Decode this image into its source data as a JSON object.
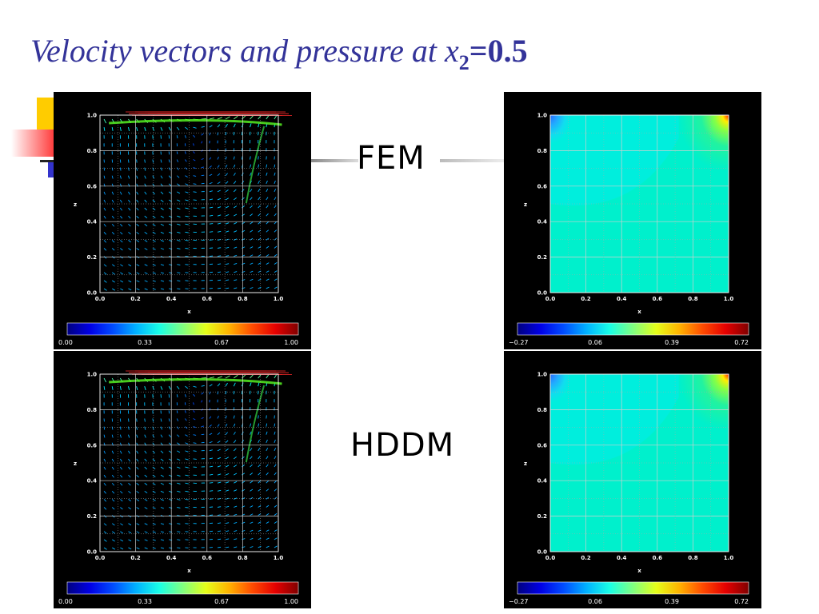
{
  "slide": {
    "title_prefix": "Velocity vectors and pressure at",
    "title_var": "x",
    "title_sub": "2",
    "title_eq": "=0.5",
    "label_top": "FEM",
    "label_bottom": "HDDM"
  },
  "axes": {
    "x_label": "x",
    "z_label": "z",
    "x_ticks": [
      "0.0",
      "0.2",
      "0.4",
      "0.6",
      "0.8",
      "1.0"
    ],
    "z_ticks": [
      "0.0",
      "0.2",
      "0.4",
      "0.6",
      "0.8",
      "1.0"
    ]
  },
  "velocity_colorbar": {
    "ticks": [
      "0.00",
      "0.33",
      "0.67",
      "1.00"
    ]
  },
  "pressure_colorbar": {
    "ticks": [
      "−0.27",
      "0.06",
      "0.39",
      "0.72"
    ]
  },
  "colors": {
    "title": "#333399",
    "deco_yellow": "#ffcc00",
    "deco_red": "#ff3333",
    "deco_blue": "#3333cc",
    "pressure_field": "#00f0cc",
    "pressure_field_top": "#00eedd"
  }
}
